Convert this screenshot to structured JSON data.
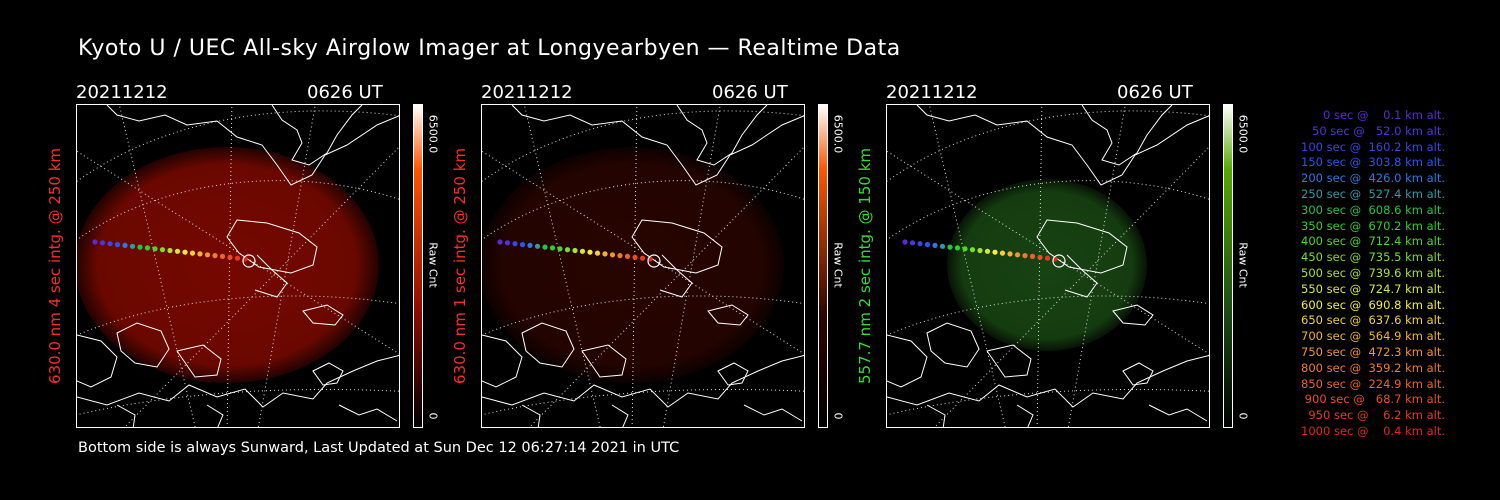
{
  "title": "Kyoto U / UEC All-sky Airglow Imager at Longyearbyen — Realtime Data",
  "footer": "Bottom side is always Sunward, Last Updated at Sun Dec 12 06:27:14 2021 in UTC",
  "panels": [
    {
      "date": "20211212",
      "time": "0626 UT",
      "ylabel": "630.0 nm 4 sec intg. @ 250 km",
      "label_color": "#ff2a2a",
      "cbar_max": "6500.0",
      "cbar_min": "0",
      "cbar_label": "Raw Cnt",
      "glow_color": "#8a0a00",
      "glow_opacity": 0.85,
      "cbar_hi": "#ff5500"
    },
    {
      "date": "20211212",
      "time": "0626 UT",
      "ylabel": "630.0 nm 1 sec intg. @ 250 km",
      "label_color": "#ff2a2a",
      "cbar_max": "6500.0",
      "cbar_min": "0",
      "cbar_label": "Raw Cnt",
      "glow_color": "#2e0500",
      "glow_opacity": 0.85,
      "cbar_hi": "#ff5500"
    },
    {
      "date": "20211212",
      "time": "0626 UT",
      "ylabel": "557.7 nm 2 sec intg. @ 150 km",
      "label_color": "#33dd33",
      "cbar_max": "6500.0",
      "cbar_min": "0",
      "cbar_label": "Raw Cnt",
      "glow_color": "#1a4a14",
      "glow_opacity": 0.9,
      "cbar_hi": "#55aa00"
    }
  ],
  "legend": [
    {
      "text": "   0 sec @    0.1 km alt.",
      "color": "#5a2ad8"
    },
    {
      "text": "  50 sec @   52.0 km alt.",
      "color": "#4a36e0"
    },
    {
      "text": " 100 sec @  160.2 km alt.",
      "color": "#3a45e8"
    },
    {
      "text": " 150 sec @  303.8 km alt.",
      "color": "#2a55f0"
    },
    {
      "text": " 200 sec @  426.0 km alt.",
      "color": "#2c78e6"
    },
    {
      "text": " 250 sec @  527.4 km alt.",
      "color": "#2f9aa8"
    },
    {
      "text": " 300 sec @  608.6 km alt.",
      "color": "#27c24a"
    },
    {
      "text": " 350 sec @  670.2 km alt.",
      "color": "#31cf2a"
    },
    {
      "text": " 400 sec @  712.4 km alt.",
      "color": "#4ad72a"
    },
    {
      "text": " 450 sec @  735.5 km alt.",
      "color": "#7ade2c"
    },
    {
      "text": " 500 sec @  739.6 km alt.",
      "color": "#a8e42e"
    },
    {
      "text": " 550 sec @  724.7 km alt.",
      "color": "#d6ea32"
    },
    {
      "text": " 600 sec @  690.8 km alt.",
      "color": "#f4ee38"
    },
    {
      "text": " 650 sec @  637.6 km alt.",
      "color": "#f4d035"
    },
    {
      "text": " 700 sec @  564.9 km alt.",
      "color": "#f2b234"
    },
    {
      "text": " 750 sec @  472.3 km alt.",
      "color": "#f09430"
    },
    {
      "text": " 800 sec @  359.2 km alt.",
      "color": "#ee7a2c"
    },
    {
      "text": " 850 sec @  224.9 km alt.",
      "color": "#ec6428"
    },
    {
      "text": " 900 sec @   68.7 km alt.",
      "color": "#ea4e24"
    },
    {
      "text": " 950 sec @    6.2 km alt.",
      "color": "#e83a20"
    },
    {
      "text": "1000 sec @    0.4 km alt.",
      "color": "#e6261c"
    }
  ]
}
